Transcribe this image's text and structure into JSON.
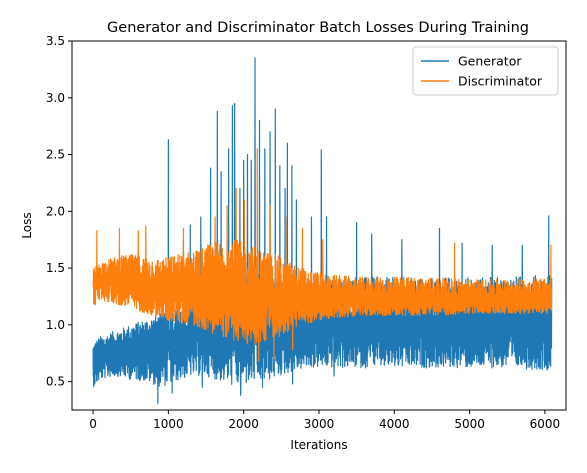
{
  "chart_data": {
    "type": "line",
    "title": "Generator and Discriminator Batch Losses During Training",
    "xlabel": "Iterations",
    "ylabel": "Loss",
    "xlim": [
      -280,
      6280
    ],
    "ylim": [
      0.25,
      3.5
    ],
    "xticks": [
      0,
      1000,
      2000,
      3000,
      4000,
      5000,
      6000
    ],
    "yticks": [
      0.5,
      1.0,
      1.5,
      2.0,
      2.5,
      3.0,
      3.5
    ],
    "ytick_labels": [
      "0.5",
      "1.0",
      "1.5",
      "2.0",
      "2.5",
      "3.0",
      "3.5"
    ],
    "x_extent": [
      0,
      6090
    ],
    "legend_position": "top-right",
    "grid": false,
    "series": [
      {
        "name": "Generator",
        "color": "#1f77b4",
        "band": {
          "x": [
            0,
            100,
            300,
            500,
            700,
            900,
            1100,
            1300,
            1500,
            1700,
            1900,
            2100,
            2300,
            2500,
            2700,
            2900,
            3100,
            3500,
            4000,
            4500,
            5000,
            5500,
            6090
          ],
          "low": [
            0.45,
            0.52,
            0.55,
            0.52,
            0.5,
            0.45,
            0.5,
            0.55,
            0.55,
            0.5,
            0.45,
            0.48,
            0.5,
            0.55,
            0.6,
            0.62,
            0.62,
            0.62,
            0.62,
            0.62,
            0.62,
            0.62,
            0.6
          ],
          "mid": [
            0.62,
            0.7,
            0.75,
            0.78,
            0.8,
            0.82,
            0.85,
            0.86,
            0.9,
            0.95,
            1.0,
            1.0,
            0.98,
            0.93,
            0.92,
            0.95,
            0.98,
            0.98,
            0.98,
            0.98,
            0.98,
            0.98,
            0.98
          ],
          "high": [
            0.85,
            0.9,
            0.95,
            1.0,
            1.05,
            1.1,
            1.15,
            1.2,
            1.35,
            1.5,
            1.6,
            1.6,
            1.55,
            1.45,
            1.35,
            1.35,
            1.4,
            1.42,
            1.42,
            1.42,
            1.42,
            1.42,
            1.45
          ]
        },
        "spikes": [
          {
            "x": 1000,
            "y": 2.63
          },
          {
            "x": 1130,
            "y": 1.55
          },
          {
            "x": 1200,
            "y": 1.75
          },
          {
            "x": 1290,
            "y": 1.88
          },
          {
            "x": 1430,
            "y": 1.95
          },
          {
            "x": 1560,
            "y": 2.38
          },
          {
            "x": 1650,
            "y": 2.88
          },
          {
            "x": 1700,
            "y": 2.35
          },
          {
            "x": 1800,
            "y": 2.55
          },
          {
            "x": 1850,
            "y": 2.93
          },
          {
            "x": 1880,
            "y": 2.95
          },
          {
            "x": 1950,
            "y": 2.2
          },
          {
            "x": 2000,
            "y": 2.45
          },
          {
            "x": 2050,
            "y": 2.5
          },
          {
            "x": 2100,
            "y": 2.45
          },
          {
            "x": 2150,
            "y": 3.35
          },
          {
            "x": 2210,
            "y": 2.8
          },
          {
            "x": 2280,
            "y": 2.55
          },
          {
            "x": 2350,
            "y": 2.7
          },
          {
            "x": 2420,
            "y": 2.9
          },
          {
            "x": 2480,
            "y": 2.4
          },
          {
            "x": 2550,
            "y": 2.2
          },
          {
            "x": 2580,
            "y": 2.6
          },
          {
            "x": 2640,
            "y": 2.4
          },
          {
            "x": 2700,
            "y": 2.1
          },
          {
            "x": 2900,
            "y": 1.95
          },
          {
            "x": 3030,
            "y": 2.54
          },
          {
            "x": 3100,
            "y": 1.95
          },
          {
            "x": 3500,
            "y": 1.9
          },
          {
            "x": 3700,
            "y": 1.8
          },
          {
            "x": 4100,
            "y": 1.75
          },
          {
            "x": 4600,
            "y": 1.85
          },
          {
            "x": 4900,
            "y": 1.72
          },
          {
            "x": 5300,
            "y": 1.7
          },
          {
            "x": 5700,
            "y": 1.7
          },
          {
            "x": 6050,
            "y": 1.96
          }
        ],
        "dips": [
          {
            "x": 860,
            "y": 0.31
          },
          {
            "x": 1050,
            "y": 0.4
          },
          {
            "x": 1450,
            "y": 0.45
          },
          {
            "x": 1960,
            "y": 0.38
          },
          {
            "x": 2250,
            "y": 0.45
          },
          {
            "x": 2650,
            "y": 0.48
          },
          {
            "x": 3200,
            "y": 0.55
          }
        ]
      },
      {
        "name": "Discriminator",
        "color": "#ff7f0e",
        "band": {
          "x": [
            0,
            100,
            300,
            500,
            700,
            900,
            1100,
            1300,
            1500,
            1700,
            1900,
            2100,
            2300,
            2500,
            2700,
            2900,
            3100,
            3500,
            4000,
            4500,
            5000,
            5500,
            6090
          ],
          "low": [
            1.15,
            1.22,
            1.18,
            1.15,
            1.1,
            1.05,
            1.02,
            1.0,
            0.95,
            0.9,
            0.85,
            0.82,
            0.85,
            0.9,
            0.98,
            1.02,
            1.05,
            1.08,
            1.08,
            1.08,
            1.1,
            1.1,
            1.1
          ],
          "mid": [
            1.35,
            1.42,
            1.4,
            1.38,
            1.35,
            1.33,
            1.32,
            1.3,
            1.27,
            1.25,
            1.22,
            1.2,
            1.2,
            1.2,
            1.2,
            1.2,
            1.2,
            1.2,
            1.2,
            1.2,
            1.2,
            1.2,
            1.2
          ],
          "high": [
            1.5,
            1.55,
            1.6,
            1.62,
            1.6,
            1.58,
            1.62,
            1.65,
            1.7,
            1.75,
            1.75,
            1.7,
            1.65,
            1.6,
            1.52,
            1.48,
            1.45,
            1.42,
            1.42,
            1.42,
            1.4,
            1.4,
            1.42
          ]
        },
        "spikes": [
          {
            "x": 50,
            "y": 1.83
          },
          {
            "x": 350,
            "y": 1.85
          },
          {
            "x": 600,
            "y": 1.83
          },
          {
            "x": 700,
            "y": 1.87
          },
          {
            "x": 1200,
            "y": 1.85
          },
          {
            "x": 1620,
            "y": 1.95
          },
          {
            "x": 1780,
            "y": 2.05
          },
          {
            "x": 1900,
            "y": 2.2
          },
          {
            "x": 2010,
            "y": 2.1
          },
          {
            "x": 2180,
            "y": 2.55
          },
          {
            "x": 2350,
            "y": 2.05
          },
          {
            "x": 2560,
            "y": 1.95
          },
          {
            "x": 2780,
            "y": 1.85
          },
          {
            "x": 3050,
            "y": 1.75
          },
          {
            "x": 4800,
            "y": 1.72
          },
          {
            "x": 6080,
            "y": 1.7
          }
        ],
        "dips": [
          {
            "x": 2200,
            "y": 0.68
          },
          {
            "x": 2400,
            "y": 0.7
          },
          {
            "x": 2650,
            "y": 0.78
          }
        ]
      }
    ]
  }
}
